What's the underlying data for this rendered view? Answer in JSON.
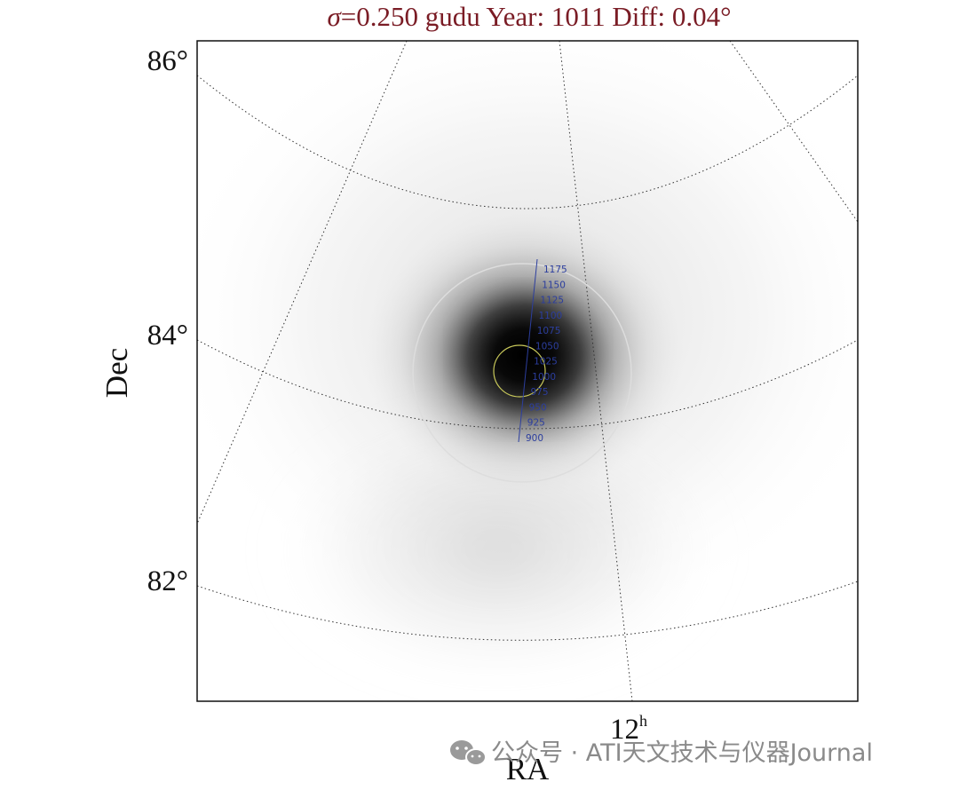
{
  "chart_data": {
    "type": "heatmap",
    "title": "σ=0.250 gudu Year: 1011 Diff: 0.04°",
    "title_parts": {
      "sigma_symbol": "σ",
      "rest": "=0.250 gudu Year: 1011 Diff: 0.04°"
    },
    "xlabel": "RA",
    "ylabel": "Dec",
    "dec_ticks": [
      {
        "value": 86,
        "label": "86°"
      },
      {
        "value": 84,
        "label": "84°"
      },
      {
        "value": 82,
        "label": "82°"
      }
    ],
    "ra_tick": {
      "value": 12,
      "label": "12",
      "superscript": "h"
    },
    "grid": true,
    "colormap": "greys",
    "year_track_labels": [
      {
        "year": 1175,
        "label": "1175"
      },
      {
        "year": 1150,
        "label": "1150"
      },
      {
        "year": 1125,
        "label": "1125"
      },
      {
        "year": 1100,
        "label": "1100"
      },
      {
        "year": 1075,
        "label": "1075"
      },
      {
        "year": 1050,
        "label": "1050"
      },
      {
        "year": 1025,
        "label": "1025"
      },
      {
        "year": 1000,
        "label": "1000"
      },
      {
        "year": 975,
        "label": "975"
      },
      {
        "year": 950,
        "label": "950"
      },
      {
        "year": 925,
        "label": "925"
      },
      {
        "year": 900,
        "label": "900"
      }
    ],
    "outer_circle_color": "#dddddd",
    "inner_circle_color": "#c8c85a",
    "track_color": "#2c3e9e",
    "grid_color": "#333333"
  },
  "watermark": {
    "text": "公众号 · ATI天文技术与仪器Journal",
    "color": "#8a8a8a"
  }
}
